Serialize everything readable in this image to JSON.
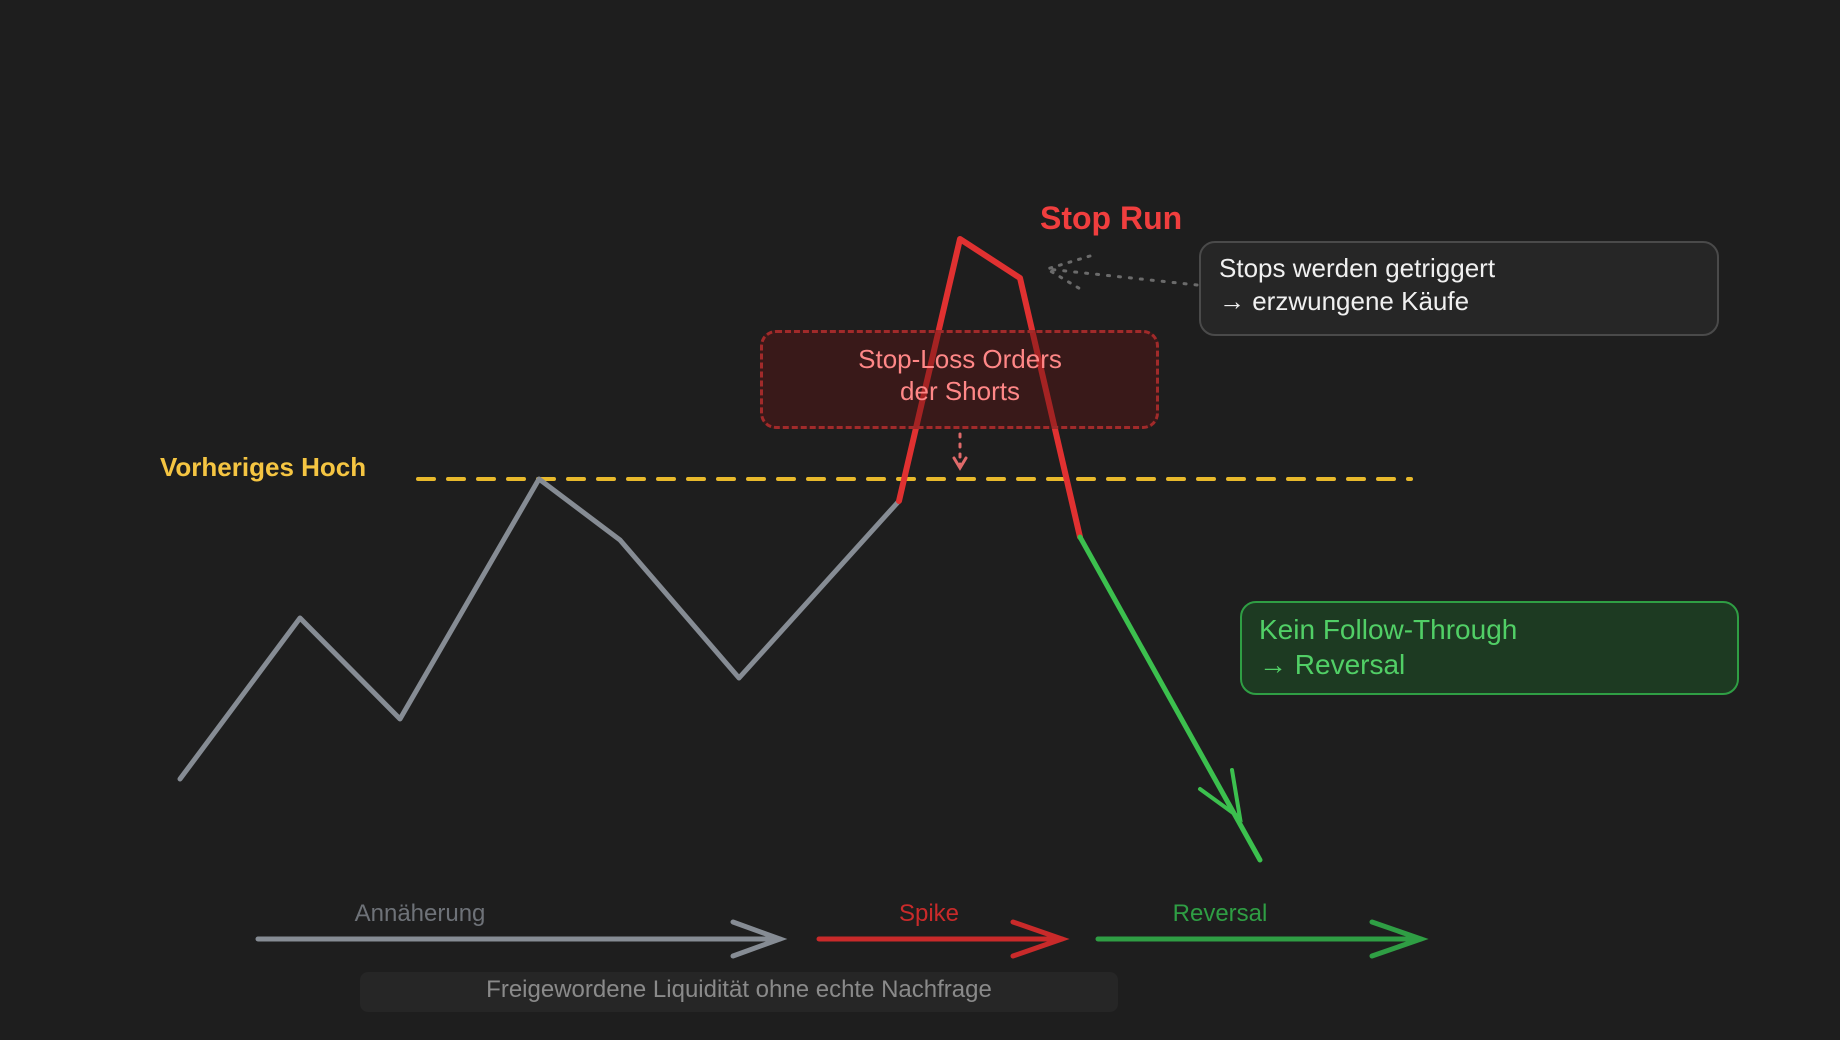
{
  "colors": {
    "background": "#1e1e1e",
    "price": "#868c94",
    "spike": "#e03131",
    "reversal": "#3cc04e",
    "level": "#e8b92c",
    "note": "#c7c7c7"
  },
  "labels": {
    "previous_high": "Vorheriges Hoch",
    "stop_run": "Stop Run",
    "stops_note_line1": "Stops werden getriggert",
    "stops_note_line2": "→ erzwungene Käufe",
    "stoploss_line1": "Stop-Loss Orders",
    "stoploss_line2": "der Shorts",
    "reversal_note_line1": "Kein Follow-Through",
    "reversal_note_line2": "→ Reversal",
    "phase_approach": "Annäherung",
    "phase_spike": "Spike",
    "phase_reversal": "Reversal",
    "footer_note": "Freigewordene Liquidität ohne echte Nachfrage"
  }
}
